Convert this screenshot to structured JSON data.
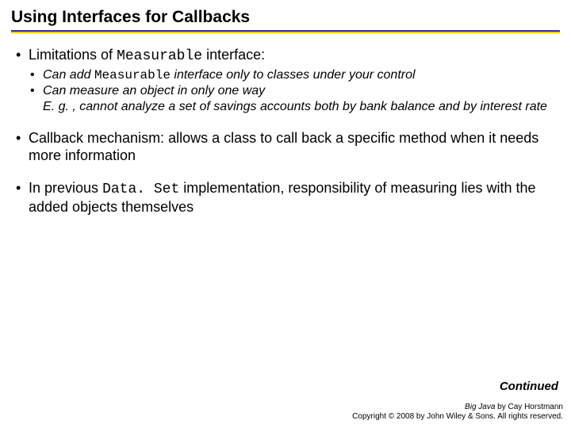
{
  "colors": {
    "rule_top": "#333399",
    "rule_bottom": "#fccc0a",
    "background": "#ffffff",
    "text": "#000000"
  },
  "typography": {
    "title_fontsize": 21,
    "body_fontsize": 18,
    "sub_fontsize": 16,
    "footer_fontsize": 10,
    "code_font": "Courier New"
  },
  "title": "Using Interfaces for Callbacks",
  "b1_pre": "Limitations of ",
  "b1_code": "Measurable",
  "b1_post": " interface:",
  "b1a_pre": "Can add ",
  "b1a_code": "Measurable",
  "b1a_post": " interface only to classes under your control",
  "b1b_l1": "Can measure an object in only one way",
  "b1b_l2": "E. g. , cannot analyze a set of savings accounts both by bank balance and by interest rate",
  "b2": "Callback mechanism: allows a class to call back a specific method when it needs more information",
  "b3_pre": "In previous ",
  "b3_code": "Data. Set",
  "b3_post": " implementation, responsibility of measuring lies with the added objects themselves",
  "continued": "Continued",
  "footer_book": "Big Java",
  "footer_author": " by Cay Horstmann",
  "footer_copy": "Copyright © 2008 by John Wiley & Sons. All rights reserved."
}
